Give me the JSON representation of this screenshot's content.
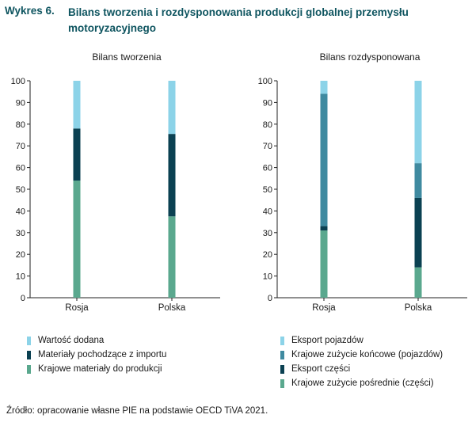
{
  "figure": {
    "label": "Wykres 6.",
    "title": "Bilans tworzenia i rozdysponowania produkcji globalnej przemysłu motoryzacyjnego"
  },
  "source": "Źródło: opracowanie własne PIE na podstawie OECD TiVA 2021.",
  "chart_data": [
    {
      "type": "bar",
      "stacked": true,
      "title": "Bilans tworzenia",
      "categories": [
        "Rosja",
        "Polska"
      ],
      "ylim": [
        0,
        100
      ],
      "yticks": [
        0,
        10,
        20,
        30,
        40,
        50,
        60,
        70,
        80,
        90,
        100
      ],
      "grid": false,
      "legend_placement": "bottom",
      "series": [
        {
          "name": "Krajowe materiały do produkcji",
          "color": "#5aa88e",
          "values": [
            54,
            37.5
          ]
        },
        {
          "name": "Materiały pochodzące z importu",
          "color": "#0b4152",
          "values": [
            24,
            38
          ]
        },
        {
          "name": "Wartość dodana",
          "color": "#8cd3e8",
          "values": [
            22,
            24.5
          ]
        }
      ]
    },
    {
      "type": "bar",
      "stacked": true,
      "title": "Bilans rozdysponowana",
      "categories": [
        "Rosja",
        "Polska"
      ],
      "ylim": [
        0,
        100
      ],
      "yticks": [
        0,
        10,
        20,
        30,
        40,
        50,
        60,
        70,
        80,
        90,
        100
      ],
      "grid": false,
      "legend_placement": "bottom",
      "series": [
        {
          "name": "Krajowe zużycie pośrednie (części)",
          "color": "#5aa88e",
          "values": [
            31,
            14
          ]
        },
        {
          "name": "Eksport części",
          "color": "#0b4152",
          "values": [
            2,
            32
          ]
        },
        {
          "name": "Krajowe zużycie końcowe (pojazdów)",
          "color": "#3f8aa0",
          "values": [
            61,
            16
          ]
        },
        {
          "name": "Eksport pojazdów",
          "color": "#8cd3e8",
          "values": [
            6,
            38
          ]
        }
      ]
    }
  ],
  "legends": [
    {
      "items": [
        {
          "label": "Wartość dodana",
          "color": "#8cd3e8"
        },
        {
          "label": "Materiały pochodzące z importu",
          "color": "#0b4152"
        },
        {
          "label": "Krajowe materiały do produkcji",
          "color": "#5aa88e"
        }
      ]
    },
    {
      "items": [
        {
          "label": "Eksport pojazdów",
          "color": "#8cd3e8"
        },
        {
          "label": "Krajowe zużycie końcowe (pojazdów)",
          "color": "#3f8aa0"
        },
        {
          "label": "Eksport części",
          "color": "#0b4152"
        },
        {
          "label": "Krajowe zużycie pośrednie (części)",
          "color": "#5aa88e"
        }
      ]
    }
  ]
}
